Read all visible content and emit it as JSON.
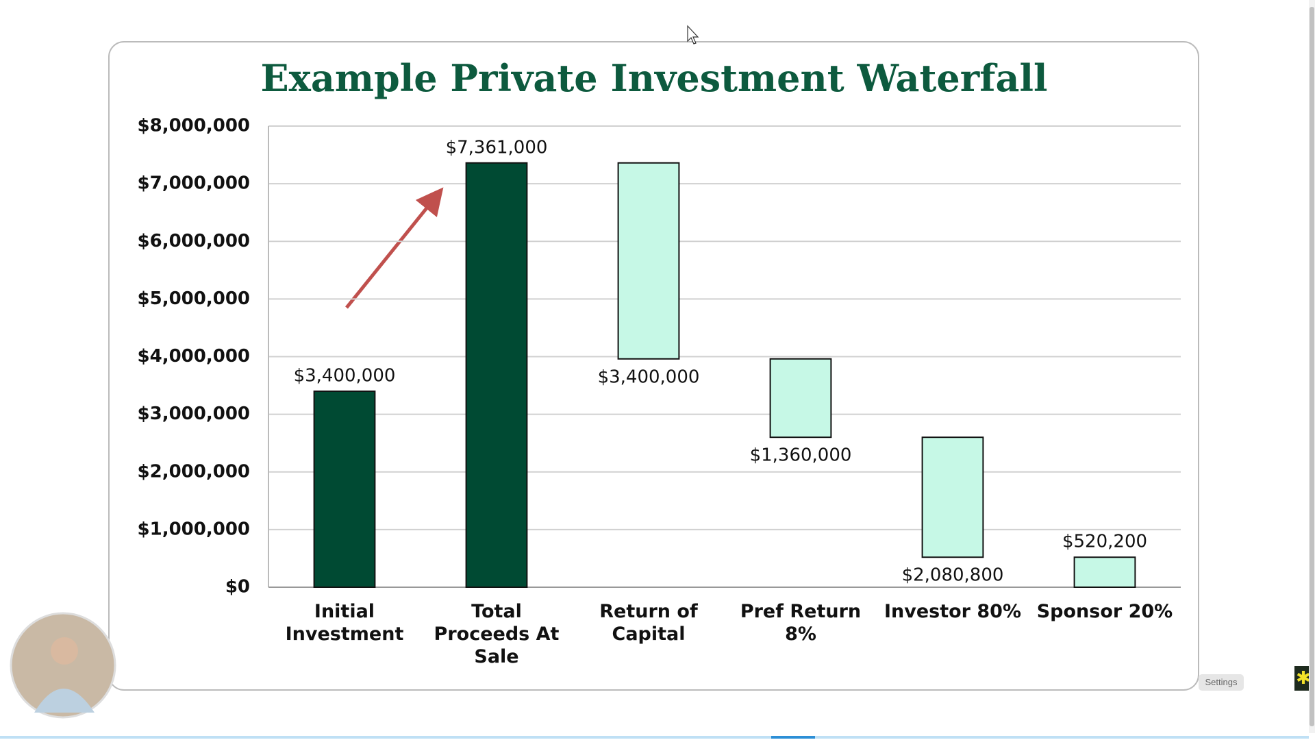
{
  "chart_data": {
    "type": "waterfall",
    "title": "Example Private Investment Waterfall",
    "categories": [
      "Initial Investment",
      "Total Proceeds At Sale",
      "Return of Capital",
      "Pref Return 8%",
      "Investor 80%",
      "Sponsor 20%"
    ],
    "values": [
      3400000,
      7361000,
      3400000,
      1360000,
      2080800,
      520200
    ],
    "value_labels": [
      "$3,400,000",
      "$7,361,000",
      "$3,400,000",
      "$1,360,000",
      "$2,080,800",
      "$520,200"
    ],
    "measures": [
      "absolute",
      "absolute",
      "decrease",
      "decrease",
      "decrease",
      "decrease"
    ],
    "colors": {
      "absolute": "#004a33",
      "decrease": "#c6f8e6"
    },
    "ylim": [
      0,
      8000000
    ],
    "yticks": [
      {
        "value": 0,
        "label": "$0"
      },
      {
        "value": 1000000,
        "label": "$1,000,000"
      },
      {
        "value": 2000000,
        "label": "$2,000,000"
      },
      {
        "value": 3000000,
        "label": "$3,000,000"
      },
      {
        "value": 4000000,
        "label": "$4,000,000"
      },
      {
        "value": 5000000,
        "label": "$5,000,000"
      },
      {
        "value": 6000000,
        "label": "$6,000,000"
      },
      {
        "value": 7000000,
        "label": "$7,000,000"
      },
      {
        "value": 8000000,
        "label": "$8,000,000"
      }
    ],
    "grid": true
  },
  "ui": {
    "settings_button": "Settings"
  }
}
